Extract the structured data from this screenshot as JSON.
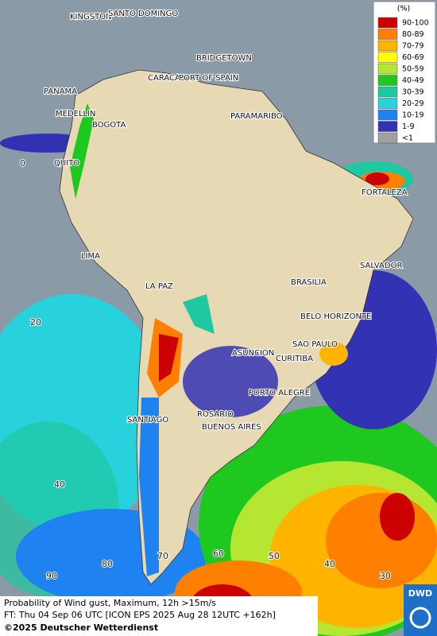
{
  "map": {
    "legend": {
      "title": "(%)",
      "items": [
        {
          "label": "90-100",
          "color": "#cc0000"
        },
        {
          "label": "80-89",
          "color": "#ff7f00"
        },
        {
          "label": "70-79",
          "color": "#ffb400"
        },
        {
          "label": "60-69",
          "color": "#ffff00"
        },
        {
          "label": "50-59",
          "color": "#b4e632"
        },
        {
          "label": "40-49",
          "color": "#1ec81e"
        },
        {
          "label": "30-39",
          "color": "#1ec8a0"
        },
        {
          "label": "20-29",
          "color": "#28d2dc"
        },
        {
          "label": "10-19",
          "color": "#1e82f0"
        },
        {
          "label": "1-9",
          "color": "#3232b4"
        },
        {
          "label": "<1",
          "color": "#a0a0a0"
        }
      ]
    },
    "cities": [
      "KINGSTON",
      "SANTO DOMINGO",
      "BRIDGETOWN",
      "CARACAS",
      "PORT OF SPAIN",
      "PANAMA",
      "MEDELLIN",
      "BOGOTA",
      "PARAMARIBO",
      "QUITO",
      "FORTALEZA",
      "LIMA",
      "SALVADOR",
      "BRASILIA",
      "LA PAZ",
      "BELO HORIZONTE",
      "SAO PAULO",
      "ASUNCION",
      "CURITIBA",
      "PORTO ALEGRE",
      "ROSARIO",
      "SANTIAGO",
      "BUENOS AIRES"
    ],
    "lat_labels": [
      "0",
      "20",
      "40"
    ],
    "lon_labels": [
      "90",
      "80",
      "70",
      "60",
      "50",
      "40",
      "30"
    ]
  },
  "footer": {
    "line1": "Probability of Wind gust, Maximum, 12h >15m/s",
    "line2": "FT: Thu 04 Sep 06 UTC [ICON EPS 2025 Aug 28 12UTC +162h]",
    "line3": "©2025 Deutscher Wetterdienst",
    "logo": "DWD"
  }
}
